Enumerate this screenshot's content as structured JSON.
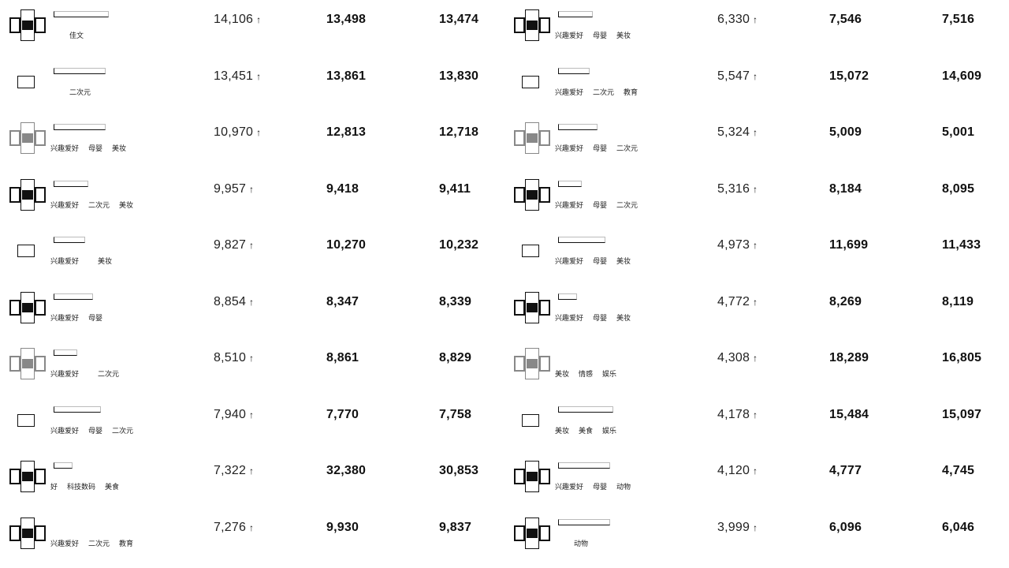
{
  "left": [
    {
      "v1": "14,106",
      "v2": "13,498",
      "v3": "13,474",
      "tags": [
        "",
        "",
        "佳文"
      ]
    },
    {
      "v1": "13,451",
      "v2": "13,861",
      "v3": "13,830",
      "tags": [
        "",
        "",
        "二次元"
      ]
    },
    {
      "v1": "10,970",
      "v2": "12,813",
      "v3": "12,718",
      "tags": [
        "兴趣爱好",
        "母婴",
        "美妆"
      ]
    },
    {
      "v1": "9,957",
      "v2": "9,418",
      "v3": "9,411",
      "tags": [
        "兴趣爱好",
        "二次元",
        "美妆"
      ]
    },
    {
      "v1": "9,827",
      "v2": "10,270",
      "v3": "10,232",
      "tags": [
        "兴趣爱好",
        "",
        "美妆"
      ]
    },
    {
      "v1": "8,854",
      "v2": "8,347",
      "v3": "8,339",
      "tags": [
        "兴趣爱好",
        "母婴",
        ""
      ]
    },
    {
      "v1": "8,510",
      "v2": "8,861",
      "v3": "8,829",
      "tags": [
        "兴趣爱好",
        "",
        "二次元"
      ]
    },
    {
      "v1": "7,940",
      "v2": "7,770",
      "v3": "7,758",
      "tags": [
        "兴趣爱好",
        "母婴",
        "二次元"
      ]
    },
    {
      "v1": "7,322",
      "v2": "32,380",
      "v3": "30,853",
      "tags": [
        "好",
        "科技数码",
        "美食"
      ]
    },
    {
      "v1": "7,276",
      "v2": "9,930",
      "v3": "9,837",
      "tags": [
        "兴趣爱好",
        "二次元",
        "教育"
      ]
    }
  ],
  "right": [
    {
      "v1": "6,330",
      "v2": "7,546",
      "v3": "7,516",
      "tags": [
        "兴趣爱好",
        "母婴",
        "美妆"
      ]
    },
    {
      "v1": "5,547",
      "v2": "15,072",
      "v3": "14,609",
      "tags": [
        "兴趣爱好",
        "二次元",
        "教育"
      ]
    },
    {
      "v1": "5,324",
      "v2": "5,009",
      "v3": "5,001",
      "tags": [
        "兴趣爱好",
        "母婴",
        "二次元"
      ]
    },
    {
      "v1": "5,316",
      "v2": "8,184",
      "v3": "8,095",
      "tags": [
        "兴趣爱好",
        "母婴",
        "二次元"
      ]
    },
    {
      "v1": "4,973",
      "v2": "11,699",
      "v3": "11,433",
      "tags": [
        "兴趣爱好",
        "母婴",
        "美妆"
      ]
    },
    {
      "v1": "4,772",
      "v2": "8,269",
      "v3": "8,119",
      "tags": [
        "兴趣爱好",
        "母婴",
        "美妆"
      ]
    },
    {
      "v1": "4,308",
      "v2": "18,289",
      "v3": "16,805",
      "tags": [
        "美妆",
        "情感",
        "娱乐"
      ]
    },
    {
      "v1": "4,178",
      "v2": "15,484",
      "v3": "15,097",
      "tags": [
        "美妆",
        "美食",
        "娱乐"
      ]
    },
    {
      "v1": "4,120",
      "v2": "4,777",
      "v3": "4,745",
      "tags": [
        "兴趣爱好",
        "母婴",
        "动物"
      ]
    },
    {
      "v1": "3,999",
      "v2": "6,096",
      "v3": "6,046",
      "tags": [
        "",
        "",
        "动物"
      ]
    }
  ],
  "icons": {
    "arrow": "↑"
  }
}
